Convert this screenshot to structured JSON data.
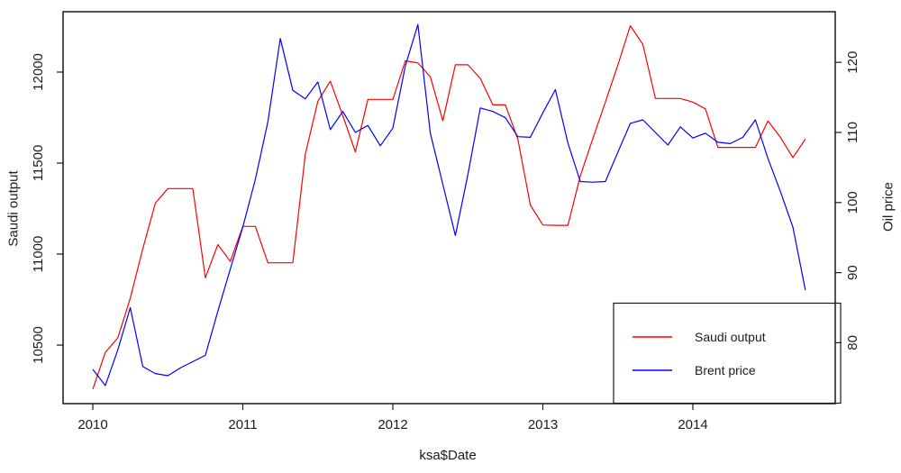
{
  "chart_data": {
    "type": "line",
    "title": "",
    "xlabel": "ksa$Date",
    "ylabel_left": "Saudi output",
    "ylabel_right": "Oil price",
    "x_tick_labels": [
      "2010",
      "2011",
      "2012",
      "2013",
      "2014"
    ],
    "y_left_ticks": [
      10500,
      11000,
      11500,
      12000
    ],
    "y_right_ticks": [
      80,
      90,
      100,
      110,
      120
    ],
    "y_left_range": [
      10180,
      12330
    ],
    "y_right_range": [
      74,
      126.5
    ],
    "grid": false,
    "legend_position": "bottom-right",
    "legend": [
      {
        "label": "Saudi output",
        "color": "#ff0000"
      },
      {
        "label": "Brent price",
        "color": "#0000ff"
      }
    ],
    "x": [
      "2010-01",
      "2010-02",
      "2010-03",
      "2010-04",
      "2010-05",
      "2010-06",
      "2010-07",
      "2010-08",
      "2010-09",
      "2010-10",
      "2010-11",
      "2010-12",
      "2011-01",
      "2011-02",
      "2011-03",
      "2011-04",
      "2011-05",
      "2011-06",
      "2011-07",
      "2011-08",
      "2011-09",
      "2011-10",
      "2011-11",
      "2011-12",
      "2012-01",
      "2012-02",
      "2012-03",
      "2012-04",
      "2012-05",
      "2012-06",
      "2012-07",
      "2012-08",
      "2012-09",
      "2012-10",
      "2012-11",
      "2012-12",
      "2013-01",
      "2013-02",
      "2013-03",
      "2013-04",
      "2013-05",
      "2013-06",
      "2013-07",
      "2013-08",
      "2013-09",
      "2013-10",
      "2013-11",
      "2013-12",
      "2014-01",
      "2014-02",
      "2014-03",
      "2014-04",
      "2014-05",
      "2014-06",
      "2014-07",
      "2014-08",
      "2014-09",
      "2014-10"
    ],
    "series": [
      {
        "name": "Saudi output",
        "axis": "left",
        "color": "#ff0000",
        "values": [
          10258,
          10460,
          10540,
          10758,
          11030,
          11280,
          11360,
          11360,
          11360,
          10870,
          11052,
          10960,
          11152,
          11152,
          10952,
          10952,
          10952,
          11550,
          11840,
          11950,
          11760,
          11562,
          11850,
          11850,
          11850,
          12062,
          12050,
          11975,
          11732,
          12040,
          12040,
          11965,
          11820,
          11820,
          11630,
          11270,
          11160,
          11158,
          11158,
          11430,
          11635,
          11835,
          12040,
          12255,
          12152,
          11855,
          11855,
          11855,
          11835,
          11798,
          11586,
          11586,
          11586,
          11586,
          11731,
          11642,
          11530,
          11632
        ]
      },
      {
        "name": "Brent price",
        "axis": "right",
        "color": "#0000ff",
        "values": [
          76.2,
          73.9,
          79.0,
          85.0,
          76.6,
          75.6,
          75.3,
          76.4,
          77.3,
          78.2,
          84.5,
          90.5,
          96.5,
          103.3,
          111.5,
          123.4,
          116.0,
          114.8,
          117.2,
          110.4,
          113.0,
          110.0,
          111.0,
          108.1,
          110.6,
          119.5,
          125.4,
          109.9,
          102.6,
          95.3,
          104.0,
          113.5,
          113.0,
          112.1,
          109.4,
          109.3,
          112.8,
          116.1,
          108.5,
          103.0,
          102.9,
          103.0,
          107.2,
          111.3,
          111.8,
          110.0,
          108.2,
          110.8,
          109.2,
          109.9,
          108.6,
          108.4,
          109.3,
          111.8,
          106.3,
          101.6,
          96.5,
          87.5
        ]
      }
    ]
  }
}
